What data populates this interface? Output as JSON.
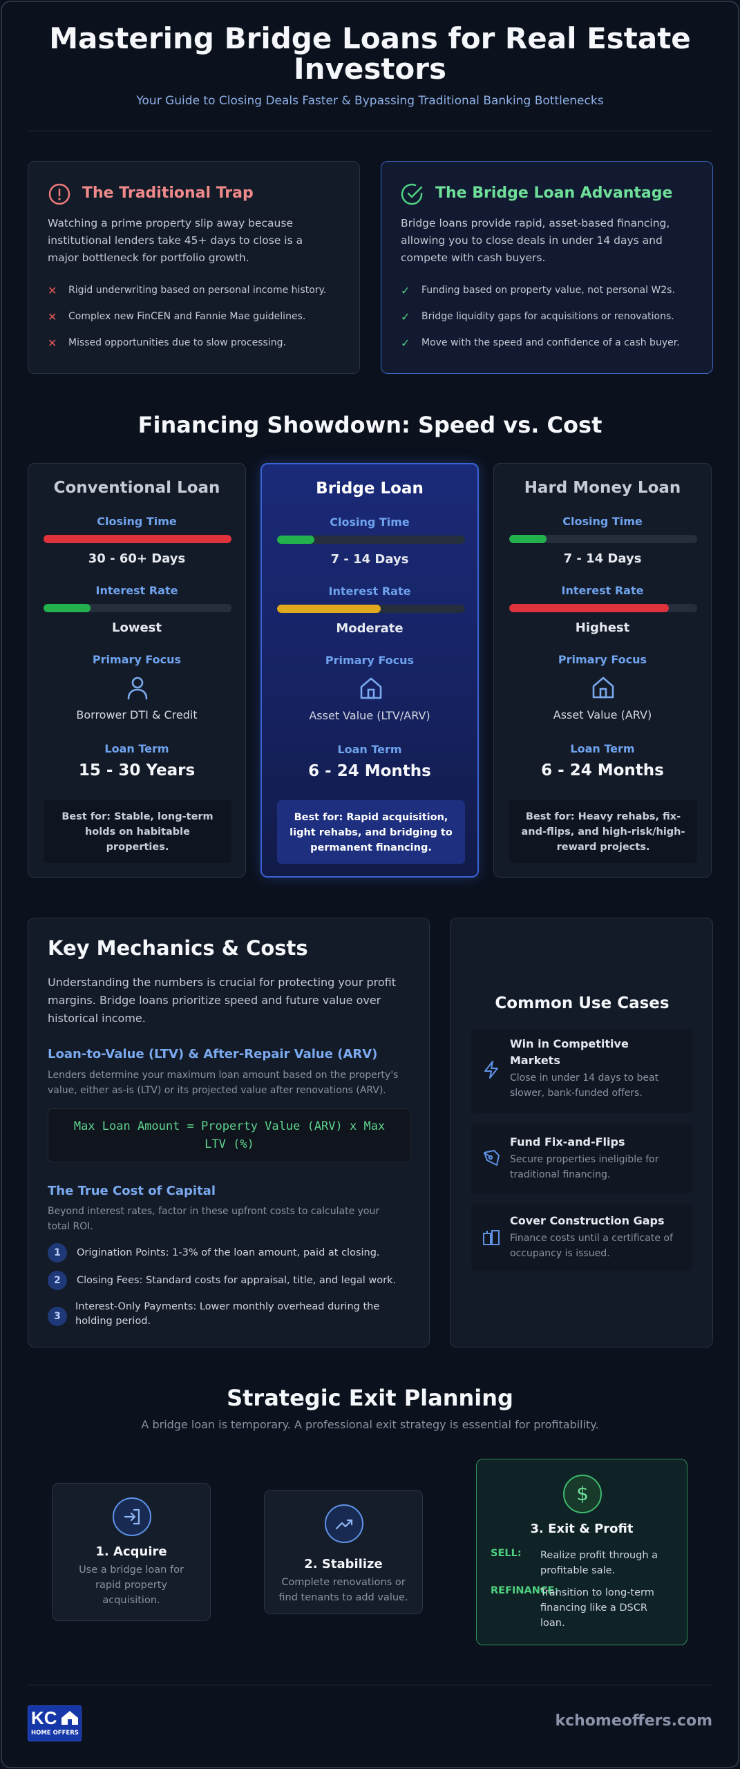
{
  "header": {
    "title_line1": "Mastering Bridge Loans for Real Estate",
    "title_line2": "Investors",
    "subtitle": "Your Guide to Closing Deals Faster & Bypassing Traditional Banking Bottlenecks"
  },
  "trap": {
    "icon": "alert-circle-icon",
    "title": "The Traditional Trap",
    "description_lines": [
      "Watching a prime property slip away because",
      "institutional lenders take 45+ days to close is a",
      "major bottleneck for portfolio growth."
    ],
    "items": [
      "Rigid underwriting based on personal income history.",
      "Complex new FinCEN and Fannie Mae guidelines.",
      "Missed opportunities due to slow processing."
    ]
  },
  "advantage": {
    "icon": "check-circle-icon",
    "title": "The Bridge Loan Advantage",
    "description_lines": [
      "Bridge loans provide rapid, asset-based financing,",
      "allowing you to close deals in under 14 days and",
      "compete with cash buyers."
    ],
    "items": [
      "Funding based on property value, not personal W2s.",
      "Bridge liquidity gaps for acquisitions or renovations.",
      "Move with the speed and confidence of a cash buyer."
    ]
  },
  "showdown": {
    "title": "Financing Showdown: Speed vs. Cost",
    "labels": {
      "closing": "Closing Time",
      "interest": "Interest Rate",
      "focus": "Primary Focus",
      "term": "Loan Term"
    },
    "cards": [
      {
        "name": "Conventional Loan",
        "closing_time": "30 - 60+ Days",
        "closing_level": 1.0,
        "interest_rate": "Lowest",
        "interest_level": 0.25,
        "focus_icon": "person-icon",
        "primary_focus": "Borrower DTI & Credit",
        "loan_term": "15 - 30 Years",
        "best_for_lines": [
          "Best for: Stable, long-term",
          "holds on habitable",
          "properties."
        ]
      },
      {
        "name": "Bridge Loan",
        "closing_time": "7 - 14 Days",
        "closing_level": 0.2,
        "interest_rate": "Moderate",
        "interest_level": 0.55,
        "focus_icon": "house-icon",
        "primary_focus": "Asset Value (LTV/ARV)",
        "loan_term": "6 - 24 Months",
        "best_for_lines": [
          "Best for: Rapid acquisition,",
          "light rehabs, and bridging to",
          "permanent financing."
        ]
      },
      {
        "name": "Hard Money Loan",
        "closing_time": "7 - 14 Days",
        "closing_level": 0.2,
        "interest_rate": "Highest",
        "interest_level": 0.85,
        "focus_icon": "house-icon",
        "primary_focus": "Asset Value (ARV)",
        "loan_term": "6 - 24 Months",
        "best_for_lines": [
          "Best for: Heavy rehabs, fix-",
          "and-flips, and high-risk/high-",
          "reward projects."
        ]
      }
    ],
    "colors": {
      "green": "#22b14c",
      "yellow": "#e0a81c",
      "red": "#e0323c"
    }
  },
  "mechanics": {
    "title": "Key Mechanics & Costs",
    "description_lines": [
      "Understanding the numbers is crucial for protecting your profit",
      "margins. Bridge loans prioritize speed and future value over",
      "historical income."
    ],
    "ltv_title": "Loan-to-Value (LTV) & After-Repair Value (ARV)",
    "ltv_lines": [
      "Lenders determine your maximum loan amount based on the property's",
      "value, either as-is (LTV) or its projected value after renovations (ARV)."
    ],
    "formula_lines": [
      "Max Loan Amount = Property Value (ARV) x Max",
      "LTV (%)"
    ],
    "cost_title": "The True Cost of Capital",
    "cost_lines": [
      "Beyond interest rates, factor in these upfront costs to calculate your",
      "total ROI."
    ],
    "costs": [
      {
        "num": "1",
        "lines": [
          "Origination Points: 1-3% of the loan amount, paid at closing."
        ]
      },
      {
        "num": "2",
        "lines": [
          "Closing Fees: Standard costs for appraisal, title, and legal work."
        ]
      },
      {
        "num": "3",
        "lines": [
          "Interest-Only Payments: Lower monthly overhead during the",
          "holding period."
        ]
      }
    ]
  },
  "use_cases": {
    "title": "Common Use Cases",
    "items": [
      {
        "icon": "lightning-icon",
        "name_lines": [
          "Win in Competitive",
          "Markets"
        ],
        "desc_lines": [
          "Close in under 14 days to beat",
          "slower, bank-funded offers."
        ]
      },
      {
        "icon": "pen-tool-icon",
        "name_lines": [
          "Fund Fix-and-Flips"
        ],
        "desc_lines": [
          "Secure properties ineligible for",
          "traditional financing."
        ]
      },
      {
        "icon": "buildings-icon",
        "name_lines": [
          "Cover Construction Gaps"
        ],
        "desc_lines": [
          "Finance costs until a certificate of",
          "occupancy is issued."
        ]
      }
    ]
  },
  "exit": {
    "title": "Strategic Exit Planning",
    "subtitle": "A bridge loan is temporary. A professional exit strategy is essential for profitability.",
    "steps": [
      {
        "icon": "login-arrow-icon",
        "name": "1. Acquire",
        "desc_lines": [
          "Use a bridge loan for",
          "rapid property",
          "acquisition."
        ]
      },
      {
        "icon": "trending-up-icon",
        "name": "2. Stabilize",
        "desc_lines": [
          "Complete renovations or",
          "find tenants to add value."
        ]
      },
      {
        "icon": "dollar-icon",
        "name": "3. Exit & Profit",
        "options": [
          {
            "key": "SELL:",
            "lines": [
              "Realize profit through a",
              "profitable sale."
            ]
          },
          {
            "key": "REFINANCE:",
            "lines": [
              "Transition to long-term",
              "financing like a DSCR",
              "loan."
            ]
          }
        ]
      }
    ]
  },
  "footer": {
    "logo_text": "KC",
    "logo_subtext": "HOME OFFERS",
    "url": "kchomeoffers.com"
  }
}
